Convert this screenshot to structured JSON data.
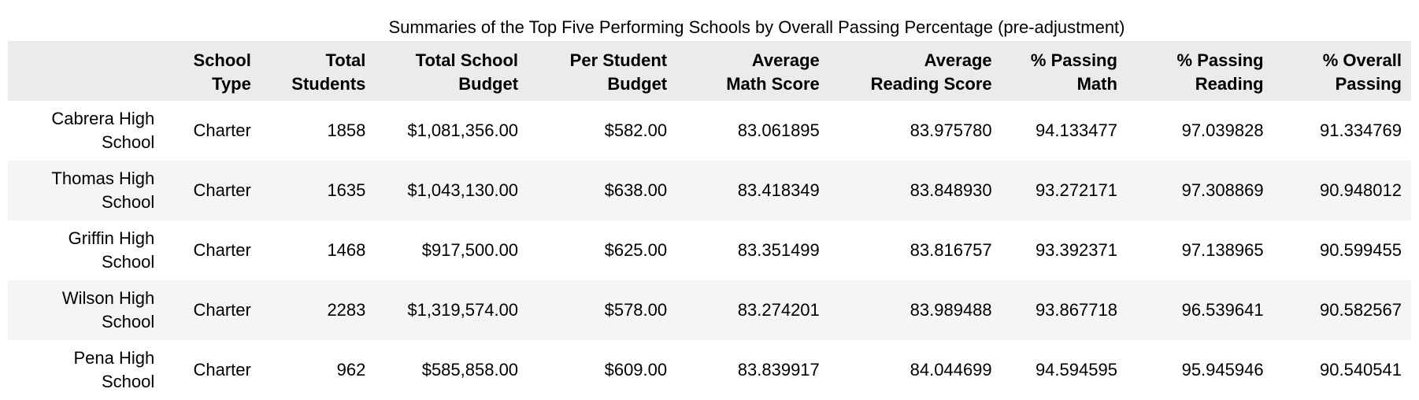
{
  "caption": "Summaries of the Top Five Performing Schools by Overall Passing Percentage (pre-adjustment)",
  "columns": [
    [
      "",
      ""
    ],
    [
      "School",
      "Type"
    ],
    [
      "Total",
      "Students"
    ],
    [
      "Total School",
      "Budget"
    ],
    [
      "Per Student",
      "Budget"
    ],
    [
      "Average",
      "Math Score"
    ],
    [
      "Average",
      "Reading Score"
    ],
    [
      "% Passing",
      "Math"
    ],
    [
      "% Passing",
      "Reading"
    ],
    [
      "% Overall",
      "Passing"
    ]
  ],
  "rows": [
    {
      "school": [
        "Cabrera High",
        "School"
      ],
      "cells": [
        "Charter",
        "1858",
        "$1,081,356.00",
        "$582.00",
        "83.061895",
        "83.975780",
        "94.133477",
        "97.039828",
        "91.334769"
      ]
    },
    {
      "school": [
        "Thomas High",
        "School"
      ],
      "cells": [
        "Charter",
        "1635",
        "$1,043,130.00",
        "$638.00",
        "83.418349",
        "83.848930",
        "93.272171",
        "97.308869",
        "90.948012"
      ]
    },
    {
      "school": [
        "Griffin High",
        "School"
      ],
      "cells": [
        "Charter",
        "1468",
        "$917,500.00",
        "$625.00",
        "83.351499",
        "83.816757",
        "93.392371",
        "97.138965",
        "90.599455"
      ]
    },
    {
      "school": [
        "Wilson High",
        "School"
      ],
      "cells": [
        "Charter",
        "2283",
        "$1,319,574.00",
        "$578.00",
        "83.274201",
        "83.989488",
        "93.867718",
        "96.539641",
        "90.582567"
      ]
    },
    {
      "school": [
        "Pena High",
        "School"
      ],
      "cells": [
        "Charter",
        "962",
        "$585,858.00",
        "$609.00",
        "83.839917",
        "84.044699",
        "94.594595",
        "95.945946",
        "90.540541"
      ]
    }
  ]
}
